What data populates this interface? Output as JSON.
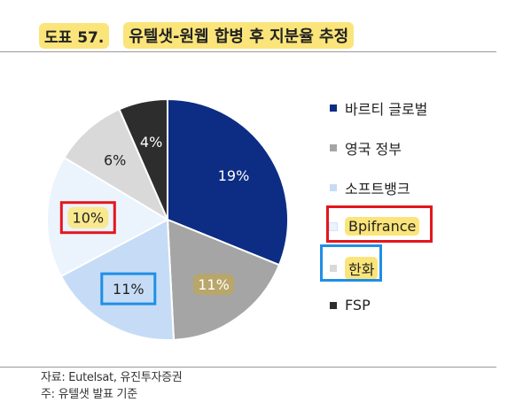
{
  "header": {
    "figure_label": "도표 57.",
    "title": "유텔샛-원웹 합병 후 지분율 추정"
  },
  "chart_data": {
    "type": "pie",
    "title": "유텔샛-원웹 합병 후 지분율 추정",
    "start_angle_deg": 0,
    "direction": "clockwise",
    "slices": [
      {
        "label": "바르티 글로벌",
        "value": 19,
        "display": "19%",
        "color": "#0c2d83",
        "text_color": "#ffffff"
      },
      {
        "label": "영국 정부",
        "value": 11,
        "display": "11%",
        "color": "#a5a5a5",
        "text_color": "#ffffff",
        "highlight": "#b8a66a"
      },
      {
        "label": "소프트뱅크",
        "value": 11,
        "display": "11%",
        "color": "#c6dcf6",
        "text_color": "#222222",
        "box": "blue"
      },
      {
        "label": "Bpifrance",
        "value": 10,
        "display": "10%",
        "color": "#ebf3fd",
        "text_color": "#222222",
        "box": "red",
        "highlight": "#fbe57a"
      },
      {
        "label": "한화",
        "value": 6,
        "display": "6%",
        "color": "#d9d9d9",
        "text_color": "#222222"
      },
      {
        "label": "FSP",
        "value": 4,
        "display": "4%",
        "color": "#2d2d2d",
        "text_color": "#ffffff"
      }
    ],
    "legend_position": "right",
    "legend_annotations": [
      {
        "label": "Bpifrance",
        "box": "red",
        "highlight": "#fbe57a"
      },
      {
        "label": "한화",
        "box": "blue",
        "highlight": "#fbe57a"
      }
    ]
  },
  "footer": {
    "source": "자료: Eutelsat, 유진투자증권",
    "note": "주: 유텔샛 발표 기준"
  }
}
